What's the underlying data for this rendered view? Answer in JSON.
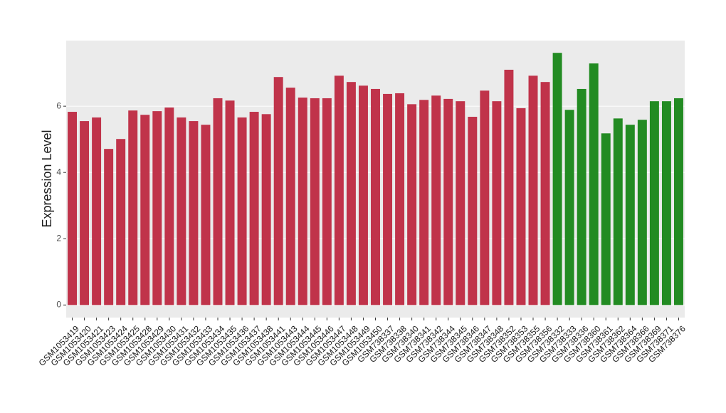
{
  "chart_data": {
    "type": "bar",
    "y_label": "Expression Level",
    "categories": [
      "GSM1053419",
      "GSM1053420",
      "GSM1053421",
      "GSM1053423",
      "GSM1053424",
      "GSM1053425",
      "GSM1053428",
      "GSM1053429",
      "GSM1053430",
      "GSM1053431",
      "GSM1053432",
      "GSM1053433",
      "GSM1053434",
      "GSM1053435",
      "GSM1053436",
      "GSM1053437",
      "GSM1053438",
      "GSM1053441",
      "GSM1053443",
      "GSM1053444",
      "GSM1053445",
      "GSM1053446",
      "GSM1053447",
      "GSM1053448",
      "GSM1053449",
      "GSM1053450",
      "GSM738337",
      "GSM738338",
      "GSM738340",
      "GSM738341",
      "GSM738342",
      "GSM738344",
      "GSM738345",
      "GSM738346",
      "GSM738347",
      "GSM738348",
      "GSM738352",
      "GSM738353",
      "GSM738355",
      "GSM738356",
      "GSM738332",
      "GSM738333",
      "GSM738336",
      "GSM738360",
      "GSM738361",
      "GSM738362",
      "GSM738364",
      "GSM738366",
      "GSM738369",
      "GSM738371",
      "GSM738376"
    ],
    "values": [
      5.83,
      5.55,
      5.66,
      4.71,
      5.01,
      5.87,
      5.74,
      5.85,
      5.96,
      5.66,
      5.55,
      5.44,
      6.24,
      6.17,
      5.66,
      5.83,
      5.76,
      6.88,
      6.56,
      6.26,
      6.24,
      6.24,
      6.92,
      6.73,
      6.62,
      6.52,
      6.37,
      6.39,
      6.06,
      6.19,
      6.32,
      6.22,
      6.15,
      5.68,
      6.47,
      6.15,
      7.1,
      5.94,
      6.92,
      6.73,
      7.61,
      5.89,
      6.52,
      7.29,
      5.18,
      5.63,
      5.44,
      5.59,
      6.15,
      6.15,
      6.24
    ],
    "colors": [
      "#c0334a",
      "#c0334a",
      "#c0334a",
      "#c0334a",
      "#c0334a",
      "#c0334a",
      "#c0334a",
      "#c0334a",
      "#c0334a",
      "#c0334a",
      "#c0334a",
      "#c0334a",
      "#c0334a",
      "#c0334a",
      "#c0334a",
      "#c0334a",
      "#c0334a",
      "#c0334a",
      "#c0334a",
      "#c0334a",
      "#c0334a",
      "#c0334a",
      "#c0334a",
      "#c0334a",
      "#c0334a",
      "#c0334a",
      "#c0334a",
      "#c0334a",
      "#c0334a",
      "#c0334a",
      "#c0334a",
      "#c0334a",
      "#c0334a",
      "#c0334a",
      "#c0334a",
      "#c0334a",
      "#c0334a",
      "#c0334a",
      "#c0334a",
      "#c0334a",
      "#228b22",
      "#228b22",
      "#228b22",
      "#228b22",
      "#228b22",
      "#228b22",
      "#228b22",
      "#228b22",
      "#228b22",
      "#228b22",
      "#228b22"
    ],
    "ylim": [
      -0.38,
      7.98
    ],
    "yticks": [
      0,
      2,
      4,
      6
    ],
    "grid": true
  }
}
